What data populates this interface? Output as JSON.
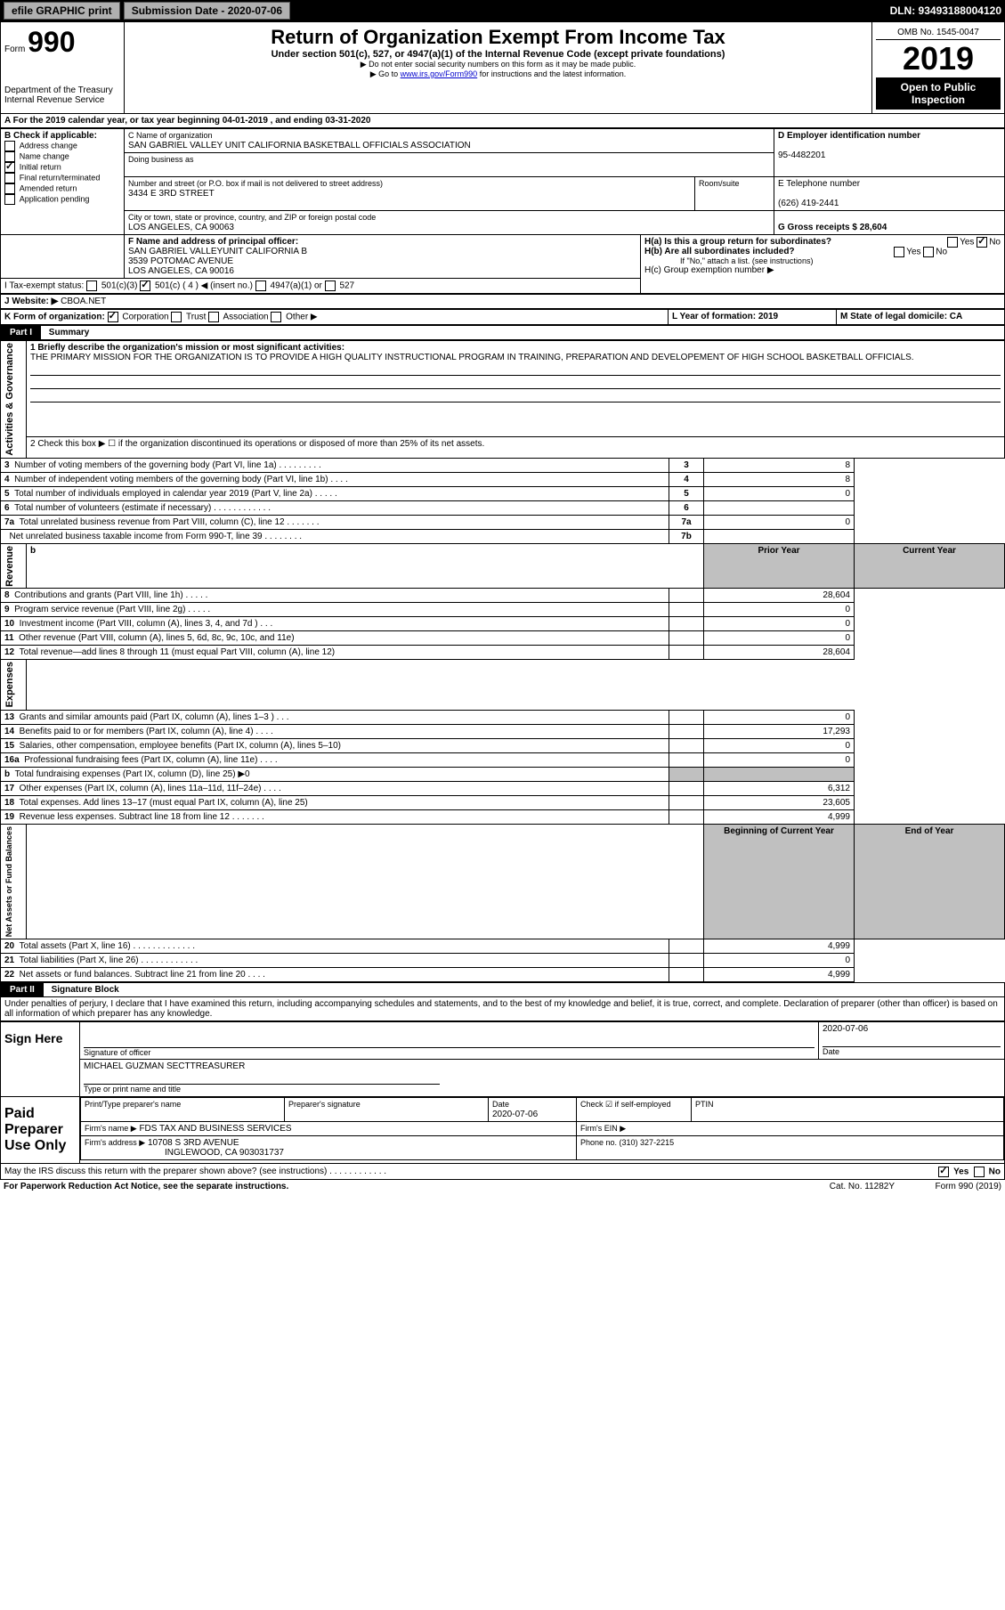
{
  "topbar": {
    "efile": "efile GRAPHIC print",
    "sub_label": "Submission Date - 2020-07-06",
    "dln": "DLN: 93493188004120"
  },
  "header": {
    "form": "Form",
    "formnum": "990",
    "dept": "Department of the Treasury",
    "irs": "Internal Revenue Service",
    "title": "Return of Organization Exempt From Income Tax",
    "sub1": "Under section 501(c), 527, or 4947(a)(1) of the Internal Revenue Code (except private foundations)",
    "sub2": "▶ Do not enter social security numbers on this form as it may be made public.",
    "sub3_pre": "▶ Go to ",
    "sub3_link": "www.irs.gov/Form990",
    "sub3_post": " for instructions and the latest information.",
    "omb": "OMB No. 1545-0047",
    "year": "2019",
    "open": "Open to Public Inspection"
  },
  "blockA": {
    "line": "A For the 2019 calendar year, or tax year beginning 04-01-2019    , and ending 03-31-2020"
  },
  "blockB": {
    "heading": "B Check if applicable:",
    "opts": [
      "Address change",
      "Name change",
      "Initial return",
      "Final return/terminated",
      "Amended return",
      "Application pending"
    ],
    "checked_idx": 2
  },
  "blockC": {
    "label": "C Name of organization",
    "name": "SAN GABRIEL VALLEY UNIT CALIFORNIA BASKETBALL OFFICIALS ASSOCIATION",
    "dba_label": "Doing business as",
    "addr_label": "Number and street (or P.O. box if mail is not delivered to street address)",
    "room_label": "Room/suite",
    "addr": "3434 E 3RD STREET",
    "city_label": "City or town, state or province, country, and ZIP or foreign postal code",
    "city": "LOS ANGELES, CA  90063"
  },
  "blockD": {
    "label": "D Employer identification number",
    "ein": "95-4482201"
  },
  "blockE": {
    "label": "E Telephone number",
    "phone": "(626) 419-2441"
  },
  "blockG": {
    "label": "G Gross receipts $ 28,604"
  },
  "blockF": {
    "label": "F Name and address of principal officer:",
    "line1": "SAN GABRIEL VALLEYUNIT CALIFORNIA B",
    "line2": "3539 POTOMAC AVENUE",
    "line3": "LOS ANGELES, CA  90016"
  },
  "blockH": {
    "a": "H(a)  Is this a group return for subordinates?",
    "b": "H(b)  Are all subordinates included?",
    "b_note": "If \"No,\" attach a list. (see instructions)",
    "c": "H(c)  Group exemption number ▶",
    "yes": "Yes",
    "no": "No"
  },
  "blockI": {
    "label": "I    Tax-exempt status:",
    "o1": "501(c)(3)",
    "o2": "501(c) ( 4 ) ◀ (insert no.)",
    "o3": "4947(a)(1) or",
    "o4": "527"
  },
  "blockJ": {
    "label": "J   Website: ▶",
    "val": "CBOA.NET"
  },
  "blockK": {
    "label": "K Form of organization:",
    "o1": "Corporation",
    "o2": "Trust",
    "o3": "Association",
    "o4": "Other ▶"
  },
  "blockL": {
    "label": "L Year of formation: 2019"
  },
  "blockM": {
    "label": "M State of legal domicile: CA"
  },
  "partI": {
    "num": "Part I",
    "title": "Summary",
    "l1": "1  Briefly describe the organization's mission or most significant activities:",
    "l1v": "THE PRIMARY MISSION FOR THE ORGANIZATION IS TO PROVIDE A HIGH QUALITY INSTRUCTIONAL PROGRAM IN TRAINING, PREPARATION AND DEVELOPEMENT OF HIGH SCHOOL BASKETBALL OFFICIALS.",
    "l2": "2   Check this box ▶ ☐  if the organization discontinued its operations or disposed of more than 25% of its net assets.",
    "rows_ag": [
      {
        "n": "3",
        "txt": "Number of voting members of the governing body (Part VI, line 1a)  .   .   .   .   .   .   .   .   .",
        "box": "3",
        "v": "8"
      },
      {
        "n": "4",
        "txt": "Number of independent voting members of the governing body (Part VI, line 1b)  .   .   .   .",
        "box": "4",
        "v": "8"
      },
      {
        "n": "5",
        "txt": "Total number of individuals employed in calendar year 2019 (Part V, line 2a)  .   .   .   .   .",
        "box": "5",
        "v": "0"
      },
      {
        "n": "6",
        "txt": "Total number of volunteers (estimate if necessary)   .   .   .   .   .   .   .   .   .   .   .   .",
        "box": "6",
        "v": ""
      },
      {
        "n": "7a",
        "txt": "Total unrelated business revenue from Part VIII, column (C), line 12  .   .   .   .   .   .   .",
        "box": "7a",
        "v": "0"
      },
      {
        "n": "",
        "txt": "Net unrelated business taxable income from Form 990-T, line 39   .   .   .   .   .   .   .   .",
        "box": "7b",
        "v": ""
      }
    ],
    "b_head": "b",
    "prior": "Prior Year",
    "curr": "Current Year",
    "rows_rev": [
      {
        "n": "8",
        "txt": "Contributions and grants (Part VIII, line 1h)   .   .   .   .   .",
        "p": "",
        "c": "28,604"
      },
      {
        "n": "9",
        "txt": "Program service revenue (Part VIII, line 2g)   .   .   .   .   .",
        "p": "",
        "c": "0"
      },
      {
        "n": "10",
        "txt": "Investment income (Part VIII, column (A), lines 3, 4, and 7d )   .   .   .",
        "p": "",
        "c": "0"
      },
      {
        "n": "11",
        "txt": "Other revenue (Part VIII, column (A), lines 5, 6d, 8c, 9c, 10c, and 11e)",
        "p": "",
        "c": "0"
      },
      {
        "n": "12",
        "txt": "Total revenue—add lines 8 through 11 (must equal Part VIII, column (A), line 12)",
        "p": "",
        "c": "28,604"
      }
    ],
    "rows_exp": [
      {
        "n": "13",
        "txt": "Grants and similar amounts paid (Part IX, column (A), lines 1–3 )  .   .   .",
        "p": "",
        "c": "0"
      },
      {
        "n": "14",
        "txt": "Benefits paid to or for members (Part IX, column (A), line 4)   .   .   .   .",
        "p": "",
        "c": "17,293"
      },
      {
        "n": "15",
        "txt": "Salaries, other compensation, employee benefits (Part IX, column (A), lines 5–10)",
        "p": "",
        "c": "0"
      },
      {
        "n": "16a",
        "txt": "Professional fundraising fees (Part IX, column (A), line 11e)  .   .   .   .",
        "p": "",
        "c": "0"
      },
      {
        "n": "b",
        "txt": "Total fundraising expenses (Part IX, column (D), line 25) ▶0",
        "p": "GRAY",
        "c": "GRAY"
      },
      {
        "n": "17",
        "txt": "Other expenses (Part IX, column (A), lines 11a–11d, 11f–24e)   .   .   .   .",
        "p": "",
        "c": "6,312"
      },
      {
        "n": "18",
        "txt": "Total expenses. Add lines 13–17 (must equal Part IX, column (A), line 25)",
        "p": "",
        "c": "23,605"
      },
      {
        "n": "19",
        "txt": "Revenue less expenses. Subtract line 18 from line 12  .   .   .   .   .   .   .",
        "p": "",
        "c": "4,999"
      }
    ],
    "bal_head1": "Beginning of Current Year",
    "bal_head2": "End of Year",
    "rows_bal": [
      {
        "n": "20",
        "txt": "Total assets (Part X, line 16)  .   .   .   .   .   .   .   .   .   .   .   .   .",
        "p": "",
        "c": "4,999"
      },
      {
        "n": "21",
        "txt": "Total liabilities (Part X, line 26)  .   .   .   .   .   .   .   .   .   .   .   .",
        "p": "",
        "c": "0"
      },
      {
        "n": "22",
        "txt": "Net assets or fund balances. Subtract line 21 from line 20   .   .   .   .",
        "p": "",
        "c": "4,999"
      }
    ],
    "v_ag": "Activities & Governance",
    "v_rev": "Revenue",
    "v_exp": "Expenses",
    "v_bal": "Net Assets or Fund Balances"
  },
  "partII": {
    "num": "Part II",
    "title": "Signature Block",
    "decl": "Under penalties of perjury, I declare that I have examined this return, including accompanying schedules and statements, and to the best of my knowledge and belief, it is true, correct, and complete. Declaration of preparer (other than officer) is based on all information of which preparer has any knowledge."
  },
  "sign": {
    "here": "Sign Here",
    "sigoff": "Signature of officer",
    "date": "Date",
    "datev": "2020-07-06",
    "name": "MICHAEL GUZMAN SECTTREASURER",
    "type": "Type or print name and title"
  },
  "paid": {
    "label": "Paid Preparer Use Only",
    "h_print": "Print/Type preparer's name",
    "h_sig": "Preparer's signature",
    "h_date": "Date",
    "datev": "2020-07-06",
    "h_check": "Check ☑ if self-employed",
    "h_ptin": "PTIN",
    "firm_label": "Firm's name     ▶",
    "firm": "FDS TAX AND BUSINESS SERVICES",
    "ein_label": "Firm's EIN ▶",
    "addr_label": "Firm's address ▶",
    "addr1": "10708 S 3RD AVENUE",
    "addr2": "INGLEWOOD, CA  903031737",
    "phone_label": "Phone no. (310) 327-2215"
  },
  "footer": {
    "discuss": "May the IRS discuss this return with the preparer shown above? (see instructions)   .   .   .   .   .   .   .   .   .   .   .   .",
    "yes": "Yes",
    "no": "No",
    "pra": "For Paperwork Reduction Act Notice, see the separate instructions.",
    "cat": "Cat. No. 11282Y",
    "form": "Form 990 (2019)"
  }
}
